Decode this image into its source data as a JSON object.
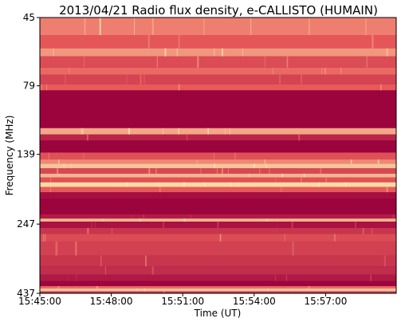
{
  "chart_data": {
    "type": "heatmap",
    "title": "2013/04/21  Radio flux density, e-CALLISTO (HUMAIN)",
    "xlabel": "Time (UT)",
    "ylabel": "Frequency (MHz)",
    "x_ticks": [
      "15:45:00",
      "15:48:00",
      "15:51:00",
      "15:54:00",
      "15:57:00"
    ],
    "y_ticks": [
      "45",
      "79",
      "139",
      "247",
      "437"
    ],
    "x_range": [
      "15:45:00",
      "15:59:58"
    ],
    "y_range": [
      45,
      437
    ],
    "y_scale": "log (inverted)",
    "colormap": {
      "low": "#99003d",
      "mid": "#e85a5a",
      "high": "#fff2b3"
    },
    "bands": [
      {
        "from_mhz": 45,
        "to_mhz": 52,
        "intensity": 0.62
      },
      {
        "from_mhz": 52,
        "to_mhz": 58,
        "intensity": 0.48
      },
      {
        "from_mhz": 58,
        "to_mhz": 62,
        "intensity": 0.7
      },
      {
        "from_mhz": 62,
        "to_mhz": 68,
        "intensity": 0.42
      },
      {
        "from_mhz": 68,
        "to_mhz": 72,
        "intensity": 0.55
      },
      {
        "from_mhz": 72,
        "to_mhz": 78,
        "intensity": 0.38
      },
      {
        "from_mhz": 78,
        "to_mhz": 82,
        "intensity": 0.5
      },
      {
        "from_mhz": 82,
        "to_mhz": 112,
        "intensity": 0.02
      },
      {
        "from_mhz": 112,
        "to_mhz": 118,
        "intensity": 0.75
      },
      {
        "from_mhz": 118,
        "to_mhz": 124,
        "intensity": 0.2
      },
      {
        "from_mhz": 124,
        "to_mhz": 137,
        "intensity": 0.02
      },
      {
        "from_mhz": 137,
        "to_mhz": 145,
        "intensity": 0.45
      },
      {
        "from_mhz": 145,
        "to_mhz": 150,
        "intensity": 0.65
      },
      {
        "from_mhz": 150,
        "to_mhz": 156,
        "intensity": 0.85
      },
      {
        "from_mhz": 156,
        "to_mhz": 163,
        "intensity": 0.4
      },
      {
        "from_mhz": 163,
        "to_mhz": 168,
        "intensity": 0.8
      },
      {
        "from_mhz": 168,
        "to_mhz": 175,
        "intensity": 0.45
      },
      {
        "from_mhz": 175,
        "to_mhz": 182,
        "intensity": 0.92
      },
      {
        "from_mhz": 182,
        "to_mhz": 190,
        "intensity": 0.5
      },
      {
        "from_mhz": 190,
        "to_mhz": 200,
        "intensity": 0.08
      },
      {
        "from_mhz": 200,
        "to_mhz": 228,
        "intensity": 0.02
      },
      {
        "from_mhz": 228,
        "to_mhz": 236,
        "intensity": 0.15
      },
      {
        "from_mhz": 236,
        "to_mhz": 242,
        "intensity": 0.8
      },
      {
        "from_mhz": 242,
        "to_mhz": 255,
        "intensity": 0.1
      },
      {
        "from_mhz": 255,
        "to_mhz": 268,
        "intensity": 0.3
      },
      {
        "from_mhz": 268,
        "to_mhz": 285,
        "intensity": 0.42
      },
      {
        "from_mhz": 285,
        "to_mhz": 320,
        "intensity": 0.36
      },
      {
        "from_mhz": 320,
        "to_mhz": 350,
        "intensity": 0.3
      },
      {
        "from_mhz": 350,
        "to_mhz": 375,
        "intensity": 0.25
      },
      {
        "from_mhz": 375,
        "to_mhz": 395,
        "intensity": 0.14
      },
      {
        "from_mhz": 395,
        "to_mhz": 412,
        "intensity": 0.03
      },
      {
        "from_mhz": 412,
        "to_mhz": 420,
        "intensity": 0.55
      },
      {
        "from_mhz": 420,
        "to_mhz": 430,
        "intensity": 0.85
      },
      {
        "from_mhz": 430,
        "to_mhz": 437,
        "intensity": 0.3
      }
    ],
    "grid": false,
    "legend": "none"
  }
}
